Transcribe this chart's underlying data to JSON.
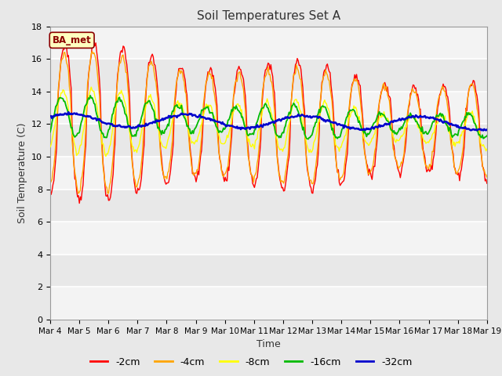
{
  "title": "Soil Temperatures Set A",
  "xlabel": "Time",
  "ylabel": "Soil Temperature (C)",
  "ylim": [
    0,
    18
  ],
  "yticks": [
    0,
    2,
    4,
    6,
    8,
    10,
    12,
    14,
    16,
    18
  ],
  "annotation": "BA_met",
  "annotation_color": "#8B0000",
  "annotation_bg": "#FFFFC0",
  "fig_bg": "#E8E8E8",
  "plot_bg": "#E8E8E8",
  "line_colors": {
    "-2cm": "#FF0000",
    "-4cm": "#FFA500",
    "-8cm": "#FFFF00",
    "-16cm": "#00BB00",
    "-32cm": "#0000CC"
  },
  "line_widths": {
    "-2cm": 1.0,
    "-4cm": 1.0,
    "-8cm": 1.0,
    "-16cm": 1.3,
    "-32cm": 1.8
  },
  "xtick_labels": [
    "Mar 4",
    "Mar 5",
    "Mar 6",
    "Mar 7",
    "Mar 8",
    "Mar 9",
    "Mar 10",
    "Mar 11",
    "Mar 12",
    "Mar 13",
    "Mar 14",
    "Mar 15",
    "Mar 16",
    "Mar 17",
    "Mar 18",
    "Mar 19"
  ],
  "n_points": 480,
  "days": 15
}
